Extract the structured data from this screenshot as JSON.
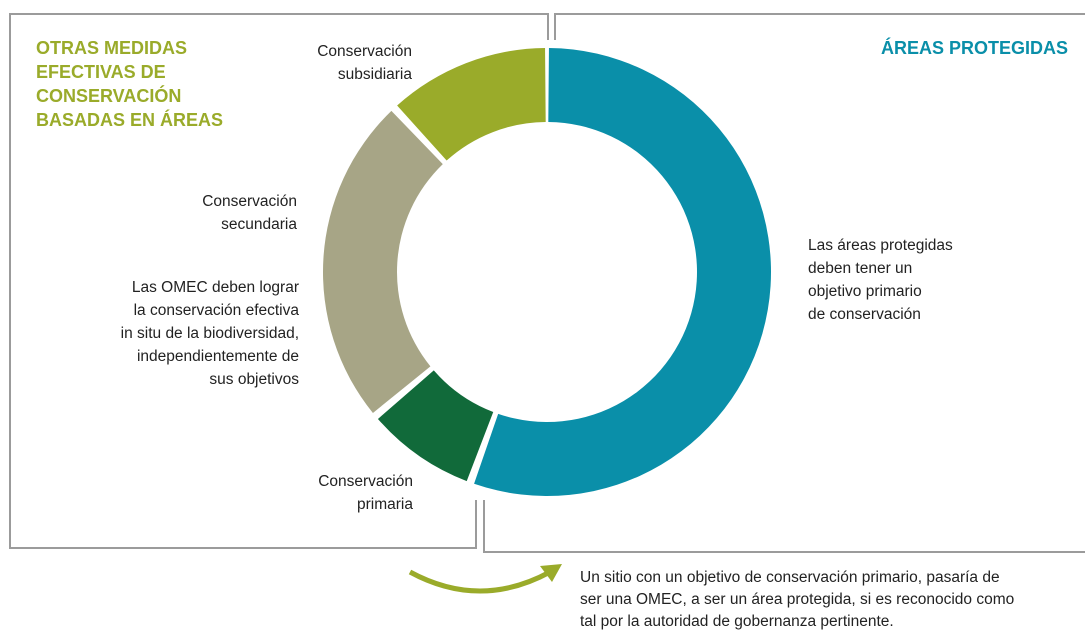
{
  "left_title": [
    "OTRAS MEDIDAS",
    "EFECTIVAS DE",
    "CONSERVACIÓN",
    "BASADAS EN ÁREAS"
  ],
  "right_title": "ÁREAS PROTEGIDAS",
  "segments": [
    {
      "label": [
        "Conservación",
        "subsidiaria"
      ]
    },
    {
      "label": [
        "Conservación",
        "secundaria"
      ]
    },
    {
      "label": [
        "Conservación",
        "primaria"
      ]
    }
  ],
  "left_text": [
    "Las OMEC deben lograr",
    "la conservación efectiva",
    "in situ de la biodiversidad,",
    "independientemente de",
    "sus objetivos"
  ],
  "right_text": [
    "Las áreas protegidas",
    "deben tener un",
    "objetivo primario",
    "de conservación"
  ],
  "footnote": [
    "Un sitio con un objetivo de conservación primario, pasaría de",
    "ser una OMEC, a ser un área protegida, si es reconocido como",
    "tal por la autoridad de gobernanza pertinente."
  ]
}
